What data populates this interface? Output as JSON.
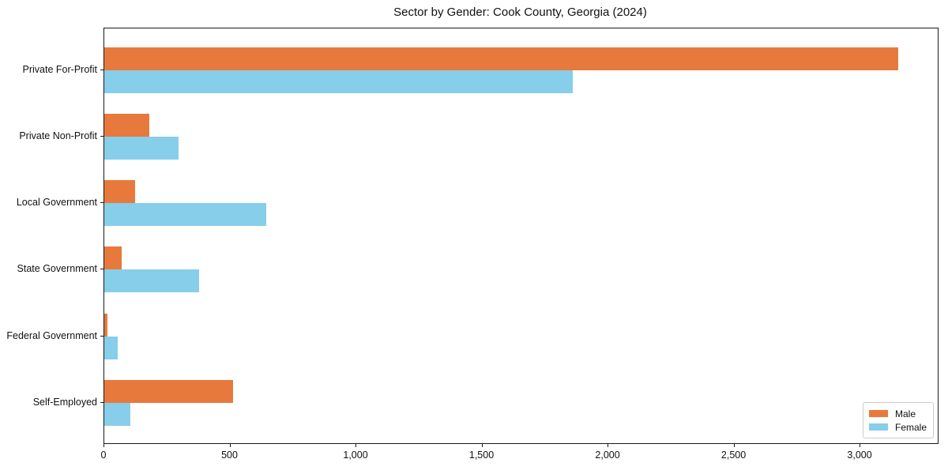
{
  "title": "Sector by Gender: Cook County, Georgia (2024)",
  "chart_data": {
    "type": "bar",
    "orientation": "horizontal",
    "title": "Sector by Gender: Cook County, Georgia (2024)",
    "categories": [
      "Private For-Profit",
      "Private Non-Profit",
      "Local Government",
      "State Government",
      "Federal Government",
      "Self-Employed"
    ],
    "series": [
      {
        "name": "Male",
        "color": "#e8793c",
        "values": [
          3150,
          180,
          122,
          69,
          12,
          510
        ]
      },
      {
        "name": "Female",
        "color": "#87ceeb",
        "values": [
          1858,
          296,
          643,
          376,
          54,
          105
        ]
      }
    ],
    "xlabel": "",
    "ylabel": "",
    "xlim": [
      0,
      3307
    ],
    "xticks": [
      0,
      500,
      1000,
      1500,
      2000,
      2500,
      3000
    ],
    "xtick_labels": [
      "0",
      "500",
      "1,000",
      "1,500",
      "2,000",
      "2,500",
      "3,000"
    ],
    "grid": false,
    "legend_position": "lower right",
    "axis_color": "#1a1a1a",
    "background_color": "#ffffff"
  }
}
